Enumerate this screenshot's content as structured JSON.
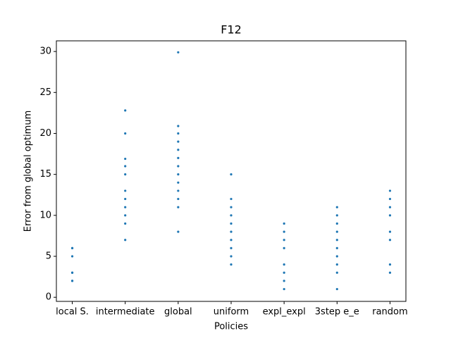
{
  "chart_data": {
    "type": "scatter",
    "title": "F12",
    "xlabel": "Policies",
    "ylabel": "Error from global optimum",
    "categories": [
      "local S.",
      "intermediate",
      "global",
      "uniform",
      "expl_expl",
      "3step e_e",
      "random"
    ],
    "values": [
      [
        6,
        6,
        5,
        3,
        3,
        2,
        2
      ],
      [
        22.8,
        20,
        16.9,
        16,
        15,
        13,
        12,
        11,
        10,
        9,
        7
      ],
      [
        29.9,
        20.9,
        20,
        19,
        18,
        17,
        16,
        15,
        14,
        13,
        12,
        11,
        8
      ],
      [
        15,
        12,
        11,
        10,
        9,
        8,
        7,
        6,
        5,
        4
      ],
      [
        9,
        8,
        7,
        6,
        4,
        3,
        2,
        1
      ],
      [
        11,
        10,
        9,
        8,
        7,
        6,
        5,
        4,
        3,
        1
      ],
      [
        13,
        12,
        11,
        10,
        8,
        7,
        4,
        3
      ]
    ],
    "color": "#1f77b4",
    "ylim": [
      -0.5,
      31.3
    ],
    "yticks": [
      0,
      5,
      10,
      15,
      20,
      25,
      30
    ]
  }
}
